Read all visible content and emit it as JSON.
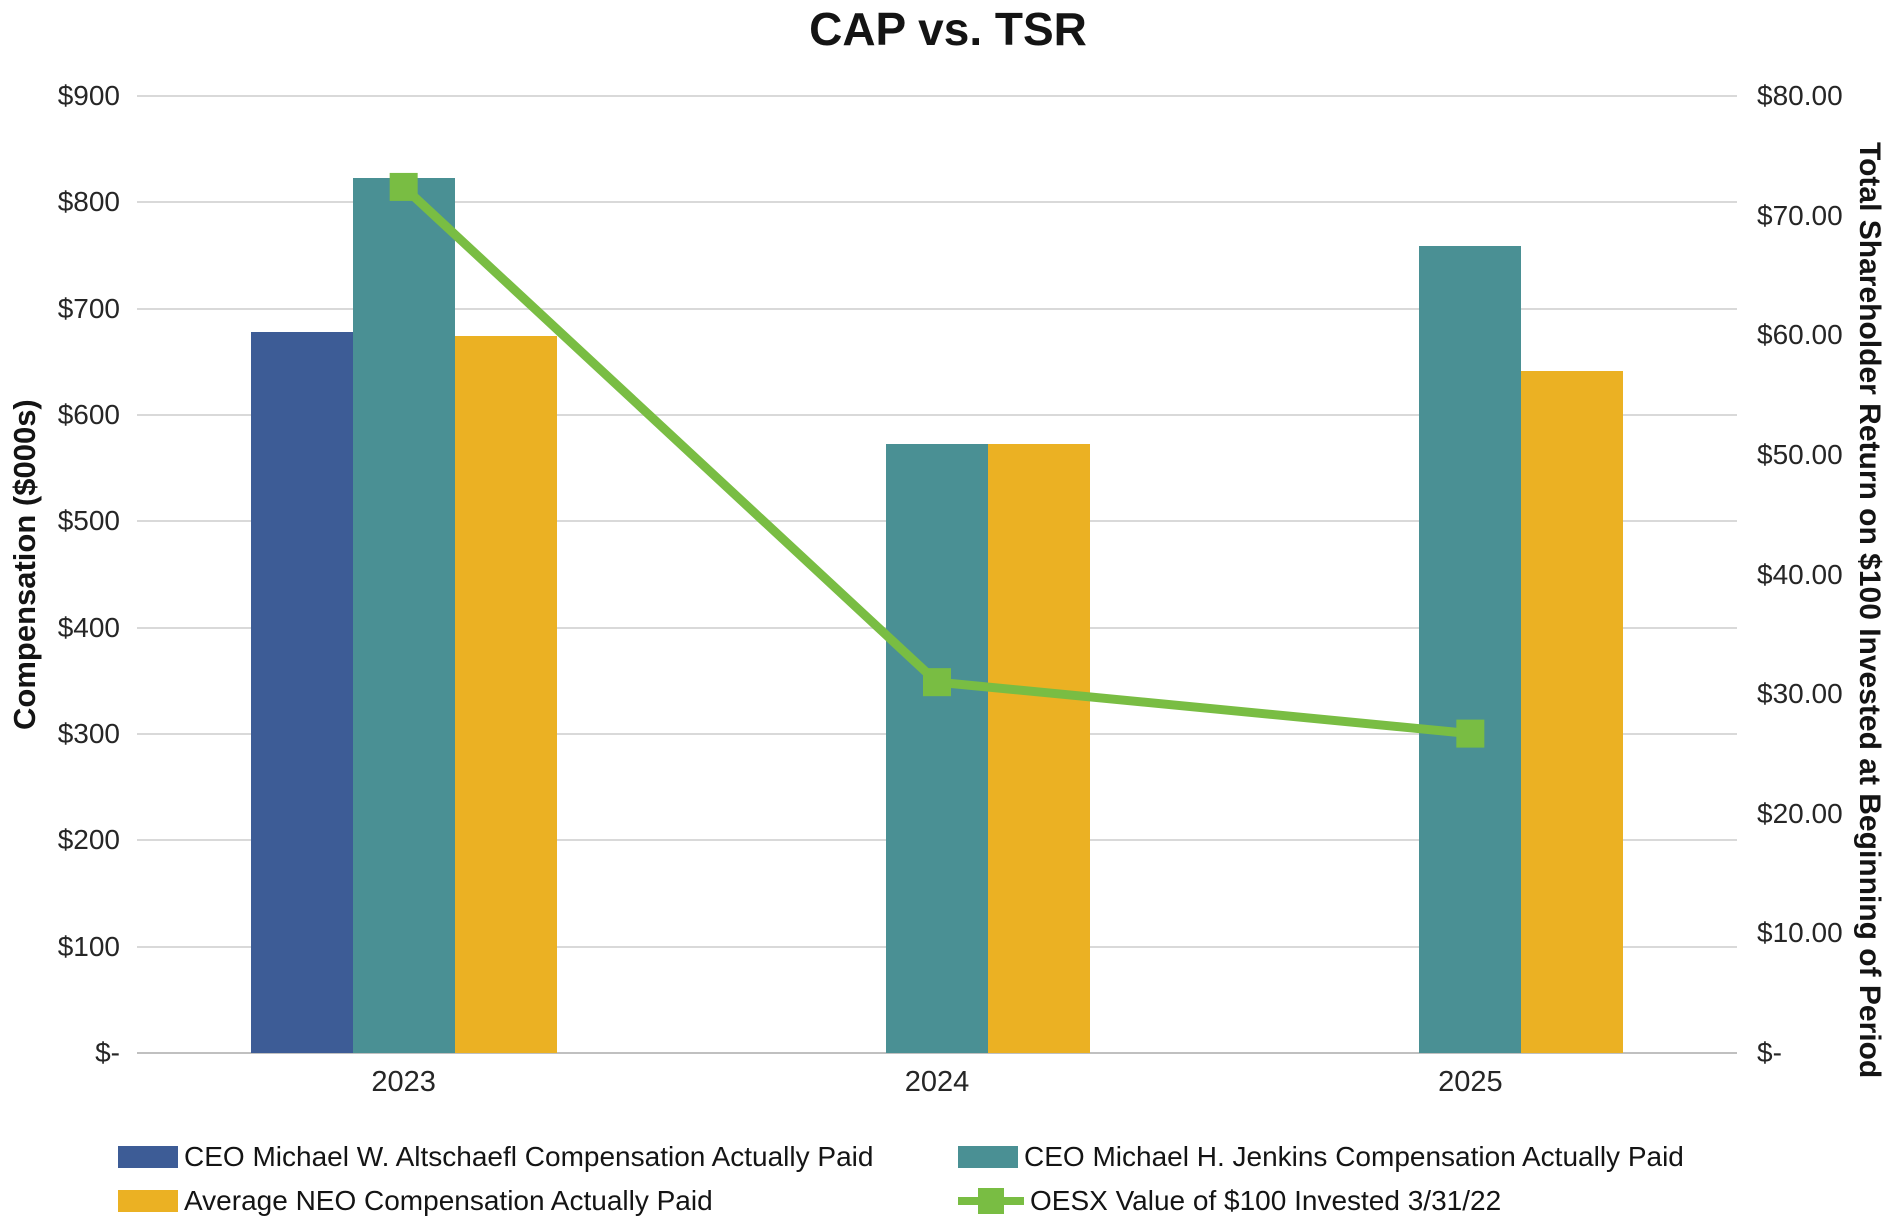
{
  "title": "CAP vs. TSR",
  "colors": {
    "ceo_altschaefl": "#3D5C96",
    "ceo_jenkins": "#4A9094",
    "avg_neo": "#EBB123",
    "oesx_line": "#79BD43",
    "gridline": "#D9D9D9",
    "axis_line": "#C0C0C0",
    "text": "#1A1A1A"
  },
  "left_axis": {
    "title": "Compensation ($000s)",
    "tick_labels": [
      "$900",
      "$800",
      "$700",
      "$600",
      "$500",
      "$400",
      "$300",
      "$200",
      "$100",
      "$-"
    ],
    "min": 0,
    "max": 900,
    "step": 100
  },
  "right_axis": {
    "title": "Total Shareholder Return on $100 Invested at Beginning of Period",
    "tick_labels": [
      "$80.00",
      "$70.00",
      "$60.00",
      "$50.00",
      "$40.00",
      "$30.00",
      "$20.00",
      "$10.00",
      "$-"
    ],
    "min": 0,
    "max": 80,
    "step": 10
  },
  "chart_data": {
    "type": "bar+line combo",
    "title": "CAP vs. TSR",
    "categories": [
      "2023",
      "2024",
      "2025"
    ],
    "series": [
      {
        "name": "CEO Michael W. Altschaefl Compensation Actually Paid",
        "type": "bar",
        "axis": "left",
        "color_key": "ceo_altschaefl",
        "values": [
          678,
          null,
          null
        ]
      },
      {
        "name": "CEO Michael H. Jenkins Compensation Actually Paid",
        "type": "bar",
        "axis": "left",
        "color_key": "ceo_jenkins",
        "values": [
          823,
          573,
          759
        ]
      },
      {
        "name": "Average NEO Compensation Actually Paid",
        "type": "bar",
        "axis": "left",
        "color_key": "avg_neo",
        "values": [
          674,
          573,
          641
        ]
      },
      {
        "name": "OESX Value of $100 Invested 3/31/22",
        "type": "line",
        "axis": "right",
        "color_key": "oesx_line",
        "values": [
          72.4,
          31.0,
          26.7
        ]
      }
    ],
    "ylabel_left": "Compensation ($000s)",
    "ylabel_right": "Total Shareholder Return on $100 Invested at Beginning of Period",
    "ylim_left": [
      0,
      900
    ],
    "ylim_right": [
      0,
      80
    ],
    "grid": true,
    "legend_position": "bottom"
  },
  "legend": {
    "items": [
      {
        "label": "CEO Michael W. Altschaefl Compensation Actually Paid",
        "marker": "square",
        "color_key": "ceo_altschaefl"
      },
      {
        "label": "CEO Michael H. Jenkins Compensation Actually Paid",
        "marker": "square",
        "color_key": "ceo_jenkins"
      },
      {
        "label": "Average NEO Compensation Actually Paid",
        "marker": "square",
        "color_key": "avg_neo"
      },
      {
        "label": "OESX Value of $100 Invested 3/31/22",
        "marker": "line-square",
        "color_key": "oesx_line"
      }
    ]
  }
}
